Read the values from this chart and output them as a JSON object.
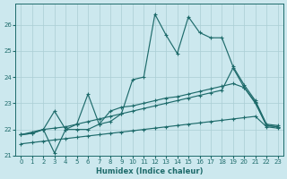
{
  "xlabel": "Humidex (Indice chaleur)",
  "bg_color": "#cce8ee",
  "grid_color": "#aacdd4",
  "line_color": "#1e6b6b",
  "xlim": [
    -0.5,
    23.5
  ],
  "ylim": [
    21.0,
    26.8
  ],
  "yticks": [
    21,
    22,
    23,
    24,
    25,
    26
  ],
  "xticks": [
    0,
    1,
    2,
    3,
    4,
    5,
    6,
    7,
    8,
    9,
    10,
    11,
    12,
    13,
    14,
    15,
    16,
    17,
    18,
    19,
    20,
    21,
    22,
    23
  ],
  "s1_x": [
    0,
    1,
    2,
    3,
    4,
    5,
    6,
    7,
    8,
    9,
    10,
    11,
    12,
    13,
    14,
    15,
    16,
    17,
    18,
    19,
    20,
    21,
    22,
    23
  ],
  "s1_y": [
    21.8,
    21.85,
    22.0,
    21.1,
    22.0,
    22.0,
    22.0,
    22.2,
    22.3,
    22.6,
    23.9,
    24.0,
    26.4,
    25.6,
    24.9,
    26.3,
    25.7,
    25.5,
    25.5,
    24.4,
    23.7,
    23.1,
    22.2,
    22.15
  ],
  "s2_x": [
    0,
    1,
    2,
    3,
    4,
    5,
    6,
    7,
    8,
    9,
    10,
    11,
    12,
    13,
    14,
    15,
    16,
    17,
    18,
    19,
    20,
    21,
    22,
    23
  ],
  "s2_y": [
    21.8,
    21.85,
    22.0,
    22.7,
    22.0,
    22.2,
    23.35,
    22.2,
    22.7,
    22.85,
    22.9,
    23.0,
    23.1,
    23.2,
    23.25,
    23.35,
    23.45,
    23.55,
    23.65,
    23.75,
    23.6,
    23.0,
    22.15,
    22.1
  ],
  "s3_x": [
    0,
    1,
    2,
    3,
    4,
    5,
    6,
    7,
    8,
    9,
    10,
    11,
    12,
    13,
    14,
    15,
    16,
    17,
    18,
    19,
    20,
    21,
    22,
    23
  ],
  "s3_y": [
    21.8,
    21.9,
    22.0,
    22.05,
    22.1,
    22.2,
    22.3,
    22.4,
    22.5,
    22.6,
    22.7,
    22.8,
    22.9,
    23.0,
    23.1,
    23.2,
    23.3,
    23.4,
    23.5,
    24.35,
    23.6,
    23.05,
    22.15,
    22.1
  ],
  "s4_x": [
    0,
    1,
    2,
    3,
    4,
    5,
    6,
    7,
    8,
    9,
    10,
    11,
    12,
    13,
    14,
    15,
    16,
    17,
    18,
    19,
    20,
    21,
    22,
    23
  ],
  "s4_y": [
    21.45,
    21.5,
    21.55,
    21.6,
    21.65,
    21.7,
    21.75,
    21.8,
    21.85,
    21.9,
    21.95,
    22.0,
    22.05,
    22.1,
    22.15,
    22.2,
    22.25,
    22.3,
    22.35,
    22.4,
    22.45,
    22.5,
    22.1,
    22.05
  ]
}
